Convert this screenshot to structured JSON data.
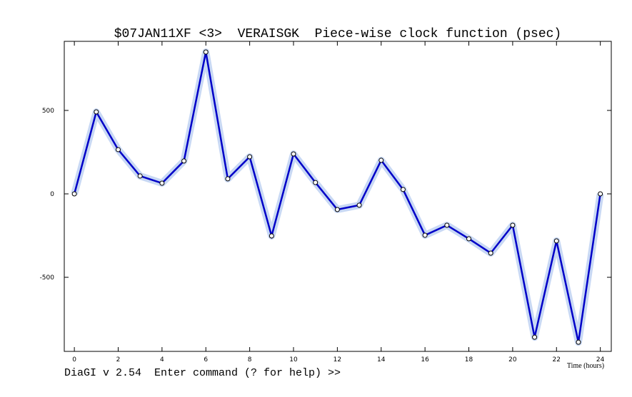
{
  "chart_data": {
    "type": "line",
    "title": "$07JAN11XF <3>  VERAISGK  Piece-wise clock function (psec)",
    "x_label": "Time (hours)",
    "x": [
      0,
      1,
      2,
      3,
      4,
      5,
      6,
      7,
      8,
      9,
      10,
      11,
      12,
      13,
      14,
      15,
      16,
      17,
      18,
      19,
      20,
      21,
      22,
      23,
      24
    ],
    "series": [
      {
        "name": "clock function",
        "color": "#0000c8",
        "values": [
          0,
          491,
          265,
          107,
          64,
          197,
          850,
          90,
          222,
          -252,
          239,
          68,
          -94,
          -68,
          201,
          26,
          -248,
          -188,
          -269,
          -355,
          -188,
          -859,
          -282,
          -889,
          0
        ]
      }
    ],
    "xlim": [
      -0.46,
      24.5
    ],
    "xticks": [
      0,
      2,
      4,
      6,
      8,
      10,
      12,
      14,
      16,
      18,
      20,
      22,
      24
    ],
    "ylim": [
      -944,
      914
    ],
    "yticks": [
      -500,
      0,
      500
    ]
  },
  "status_line": "DiaGI v 2.54  Enter command (? for help) >>"
}
